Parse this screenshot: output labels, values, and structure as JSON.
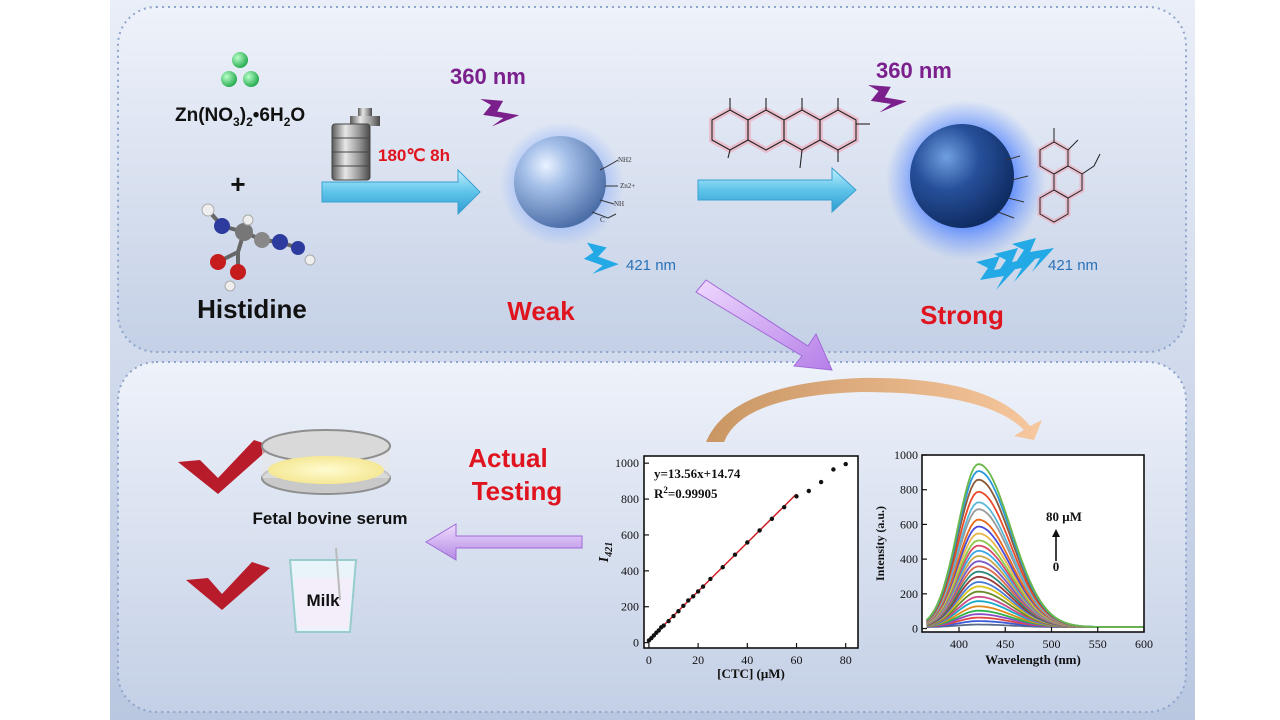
{
  "synthesis": {
    "precursor": "Zn(NO3)2•6H2O",
    "plus": "+",
    "ligand": "Histidine",
    "condition": "180℃ 8h"
  },
  "detection": {
    "excitation_left": "360 nm",
    "emission_left": "421 nm",
    "state_weak": "Weak",
    "excitation_right": "360 nm",
    "emission_right": "421 nm",
    "state_strong": "Strong",
    "particle_labels": [
      "NH2",
      "Zn2+",
      "NH",
      "C"
    ]
  },
  "application": {
    "actual_testing_line1": "Actual",
    "actual_testing_line2": "Testing",
    "sample1": "Fetal bovine serum",
    "sample2": "Milk"
  },
  "colors": {
    "red_text": "#e0141e",
    "purple_text": "#7a1f8c",
    "blue_text": "#2a72b8",
    "check": "#b81c2a",
    "panel_bg": "#ccd7ea"
  },
  "chart_data": [
    {
      "type": "scatter",
      "equation": "y=13.56x+14.74",
      "r2_label": "R",
      "r2_sup": "2",
      "r2_value": "=0.99905",
      "xlabel": "[CTC] (μM)",
      "ylabel": "I",
      "ylabel_sub": "421",
      "xlim": [
        -2,
        85
      ],
      "ylim": [
        -30,
        1040
      ],
      "xticks": [
        0,
        20,
        40,
        60,
        80
      ],
      "yticks": [
        0,
        200,
        400,
        600,
        800,
        1000
      ],
      "x": [
        0,
        1,
        2,
        3,
        4,
        5,
        6,
        8,
        10,
        12,
        14,
        16,
        18,
        20,
        22,
        25,
        30,
        35,
        40,
        45,
        50,
        55,
        60,
        65,
        70,
        75,
        80
      ],
      "y": [
        12,
        25,
        40,
        55,
        68,
        85,
        95,
        120,
        148,
        175,
        205,
        235,
        258,
        285,
        312,
        355,
        420,
        490,
        558,
        625,
        690,
        755,
        815,
        845,
        895,
        965,
        995
      ],
      "fit": {
        "slope": 13.56,
        "intercept": 14.74,
        "x_range": [
          0,
          60
        ]
      }
    },
    {
      "type": "line",
      "xlabel": "Wavelength (nm)",
      "ylabel": "Intensity (a.u.)",
      "xlim": [
        360,
        600
      ],
      "ylim": [
        -20,
        1000
      ],
      "xticks": [
        400,
        450,
        500,
        550,
        600
      ],
      "yticks": [
        0,
        200,
        400,
        600,
        800,
        1000
      ],
      "annotation_top": "80 μM",
      "annotation_bottom": "0",
      "peak_x": 421,
      "peaks": [
        15,
        35,
        55,
        75,
        95,
        120,
        150,
        175,
        205,
        235,
        260,
        290,
        320,
        350,
        380,
        410,
        440,
        470,
        500,
        540,
        580,
        620,
        680,
        720,
        780,
        850,
        900,
        940
      ]
    }
  ]
}
